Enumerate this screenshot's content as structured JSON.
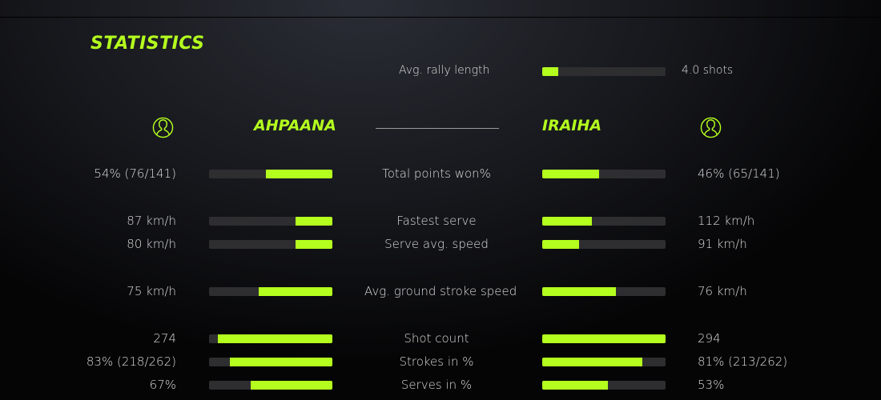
{
  "title": "STATISTICS",
  "rally": {
    "label": "Avg. rally length",
    "value": "4.0 shots",
    "fill": 0.13
  },
  "players": {
    "left": "AHPAANA",
    "right": "IRAIHA"
  },
  "accent": "#b4ff1e",
  "rows": [
    {
      "label": "Total points won%",
      "left": "54% (76/141)",
      "right": "46% (65/141)",
      "lf": 0.54,
      "rf": 0.46
    },
    {
      "label": "Fastest serve",
      "left": "87 km/h",
      "right": "112 km/h",
      "lf": 0.3,
      "rf": 0.4
    },
    {
      "label": "Serve avg. speed",
      "left": "80 km/h",
      "right": "91 km/h",
      "lf": 0.3,
      "rf": 0.3
    },
    {
      "label": "Avg. ground stroke speed",
      "left": "75 km/h",
      "right": "76 km/h",
      "lf": 0.6,
      "rf": 0.6
    },
    {
      "label": "Shot count",
      "left": "274",
      "right": "294",
      "lf": 0.93,
      "rf": 1.0
    },
    {
      "label": "Strokes in %",
      "left": "83% (218/262)",
      "right": "81% (213/262)",
      "lf": 0.83,
      "rf": 0.81
    },
    {
      "label": "Serves in %",
      "left": "67%",
      "right": "53%",
      "lf": 0.66,
      "rf": 0.53
    }
  ]
}
